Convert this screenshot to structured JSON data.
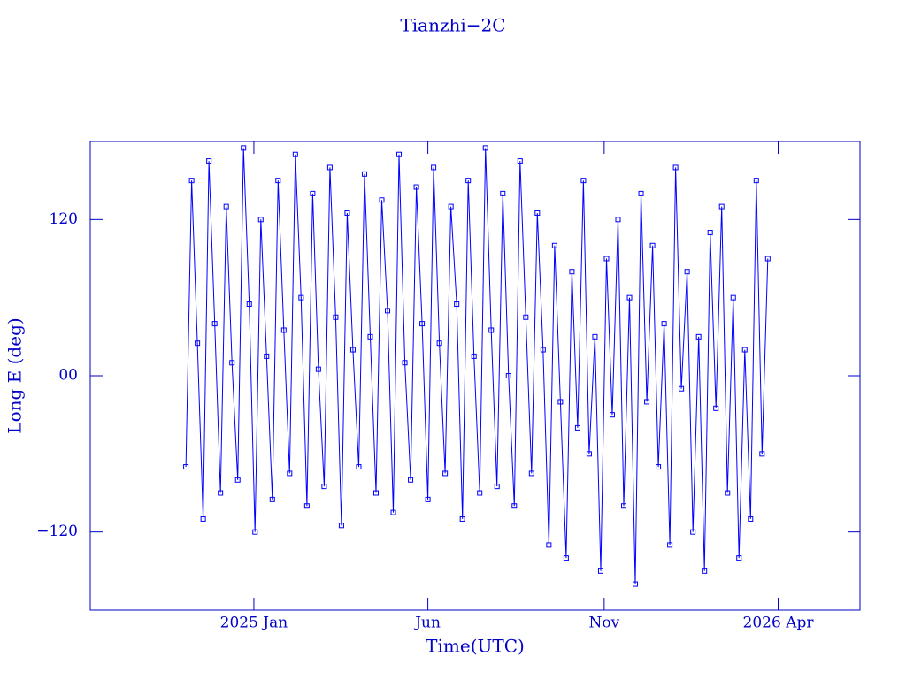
{
  "chart_data": {
    "type": "line",
    "title": "Tianzhi−2C",
    "x_label": "Time(UTC)",
    "y_label": "Long E (deg)",
    "color": "#0000ff",
    "marker": "square",
    "x": [
      -59,
      -54,
      -49,
      -44,
      -39,
      -34,
      -29,
      -24,
      -19,
      -14,
      -9,
      -4,
      1,
      6,
      11,
      16,
      21,
      26,
      31,
      36,
      41,
      46,
      51,
      56,
      61,
      66,
      71,
      76,
      81,
      86,
      91,
      96,
      101,
      106,
      111,
      116,
      121,
      126,
      131,
      136,
      141,
      146,
      151,
      156,
      161,
      166,
      171,
      176,
      181,
      186,
      191,
      196,
      201,
      206,
      211,
      216,
      221,
      226,
      231,
      236,
      241,
      246,
      251,
      256,
      261,
      266,
      271,
      276,
      281,
      286,
      291,
      296,
      301,
      306,
      311,
      316,
      321,
      326,
      331,
      336,
      341,
      346,
      351,
      356,
      361,
      366,
      371,
      376,
      381,
      386,
      391,
      396,
      401,
      406,
      411,
      416,
      421,
      426,
      431,
      436,
      441,
      446
    ],
    "values": [
      -70,
      150,
      25,
      -110,
      165,
      40,
      -90,
      130,
      10,
      -80,
      175,
      55,
      -120,
      120,
      15,
      -95,
      150,
      35,
      -75,
      170,
      60,
      -100,
      140,
      5,
      -85,
      160,
      45,
      -115,
      125,
      20,
      -70,
      155,
      30,
      -90,
      135,
      50,
      -105,
      170,
      10,
      -80,
      145,
      40,
      -95,
      160,
      25,
      -75,
      130,
      55,
      -110,
      150,
      15,
      -90,
      175,
      35,
      -85,
      140,
      0,
      -100,
      165,
      45,
      -75,
      125,
      20,
      -130,
      100,
      -20,
      -140,
      80,
      -40,
      150,
      -60,
      30,
      -150,
      90,
      -30,
      120,
      -100,
      60,
      -160,
      140,
      -20,
      100,
      -70,
      40,
      -130,
      160,
      -10,
      80,
      -120,
      30,
      -150,
      110,
      -25,
      130,
      -90,
      60,
      -140,
      20,
      -110,
      150,
      -60,
      90
    ],
    "xlim": [
      -142,
      526
    ],
    "ylim": [
      -180,
      180
    ],
    "xticks": [
      {
        "value": 0,
        "label": "2025 Jan"
      },
      {
        "value": 151,
        "label": "Jun"
      },
      {
        "value": 304,
        "label": "Nov"
      },
      {
        "value": 455,
        "label": "2026 Apr"
      }
    ],
    "yticks": [
      {
        "value": -120,
        "label": "−120"
      },
      {
        "value": 0,
        "label": "00"
      },
      120
    ],
    "grid": false
  }
}
